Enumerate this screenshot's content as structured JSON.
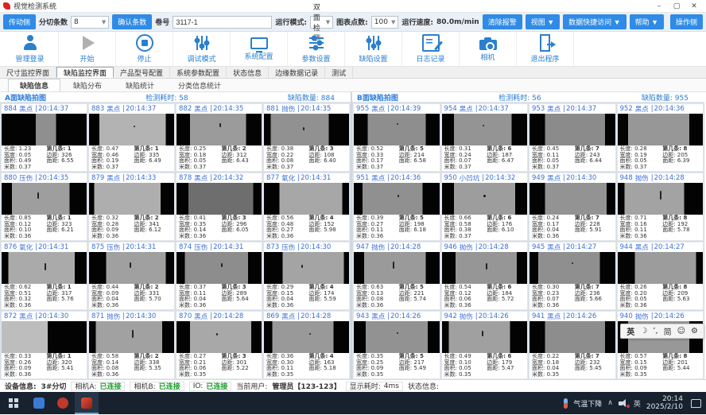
{
  "window": {
    "title": "视觉检测系统",
    "minimize": "–",
    "maximize": "▢",
    "close": "✕"
  },
  "toolbar": {
    "left_side_button": "传动侧",
    "slit_count_label": "分切条数",
    "slit_count_value": "8",
    "confirm_button": "确认条数",
    "roll_label": "卷号",
    "roll_value": "3117-1",
    "run_mode_label": "运行模式:",
    "run_mode_value": "双面检测",
    "chart_points_label": "图表点数:",
    "chart_points_value": "100",
    "speed_label": "运行速度:",
    "speed_value": "80.0m/min",
    "clear_alarm_button": "清除报警",
    "view_menu": "视图 ▼",
    "data_access_menu": "数据快捷访问 ▼",
    "help_menu": "帮助 ▼",
    "right_side_button": "操作侧"
  },
  "actions": [
    {
      "label": "管理登录",
      "icon": "user"
    },
    {
      "label": "开始",
      "icon": "play"
    },
    {
      "label": "停止",
      "icon": "stop"
    },
    {
      "label": "调试模式",
      "icon": "tune"
    },
    {
      "label": "系统配置",
      "icon": "monitor"
    },
    {
      "label": "参数设置",
      "icon": "sliders-h"
    },
    {
      "label": "缺陷设置",
      "icon": "sliders-v"
    },
    {
      "label": "日志记录",
      "icon": "log"
    },
    {
      "label": "相机",
      "icon": "camera"
    },
    {
      "label": "退出程序",
      "icon": "exit"
    }
  ],
  "main_tabs": [
    {
      "label": "尺寸监控界面",
      "active": false
    },
    {
      "label": "缺陷监控界面",
      "active": true
    },
    {
      "label": "产品型号配置",
      "active": false
    },
    {
      "label": "系统参数配置",
      "active": false
    },
    {
      "label": "状态信息",
      "active": false
    },
    {
      "label": "边缘数据记录",
      "active": false
    },
    {
      "label": "测试",
      "active": false
    }
  ],
  "sub_tabs": [
    {
      "label": "缺陷信息",
      "active": true
    },
    {
      "label": "缺陷分布",
      "active": false
    },
    {
      "label": "缺陷统计",
      "active": false
    },
    {
      "label": "分类信息统计",
      "active": false
    }
  ],
  "cell_labels": {
    "length": "长度:",
    "width": "宽度:",
    "area": "面积:",
    "meters": "米数:",
    "strip": "第几条:",
    "margin": "边距:",
    "distance": "面距:"
  },
  "panels": [
    {
      "title": "A面缺陷拍图",
      "time_label": "检测耗时:",
      "time_value": "58",
      "count_label": "缺陷数量:",
      "count_value": "884",
      "cells": [
        {
          "id": "884",
          "type": "黑点",
          "time": "20:14:37",
          "length": "1.23",
          "width": "0.05",
          "area": "0.49",
          "meters": "0.37",
          "strip": "1",
          "margin": "326",
          "distance": "6.55",
          "img": [
            40,
            36,
            "#8f8f8f",
            null
          ]
        },
        {
          "id": "883",
          "type": "黑点",
          "time": "20:14:37",
          "length": "0.47",
          "width": "0.46",
          "area": "0.19",
          "meters": "0.37",
          "strip": "1",
          "margin": "335",
          "distance": "6.49",
          "img": [
            12,
            10,
            "#b3b3b3",
            [
              52,
              38,
              2,
              2
            ]
          ]
        },
        {
          "id": "882",
          "type": "黑点",
          "time": "20:14:35",
          "length": "0.25",
          "width": "0.18",
          "area": "0.05",
          "meters": "0.37",
          "strip": "2",
          "margin": "312",
          "distance": "6.43",
          "img": [
            16,
            18,
            "#9b9b9b",
            [
              50,
              30,
              2,
              5
            ]
          ]
        },
        {
          "id": "881",
          "type": "抛伤",
          "time": "20:14:35",
          "length": "0.38",
          "width": "0.22",
          "area": "0.08",
          "meters": "0.37",
          "strip": "3",
          "margin": "108",
          "distance": "6.40",
          "img": [
            8,
            24,
            "#919191",
            [
              46,
              42,
              2,
              4
            ]
          ]
        },
        {
          "id": "880",
          "type": "压伤",
          "time": "20:14:35",
          "length": "0.85",
          "width": "0.12",
          "area": "0.10",
          "meters": "0.36",
          "strip": "1",
          "margin": "323",
          "distance": "6.21",
          "img": [
            12,
            20,
            "#9e9e9e",
            [
              42,
              30,
              2,
              8
            ]
          ]
        },
        {
          "id": "879",
          "type": "黑点",
          "time": "20:14:33",
          "length": "0.32",
          "width": "0.28",
          "area": "0.09",
          "meters": "0.36",
          "strip": "2",
          "margin": "341",
          "distance": "6.12",
          "img": [
            6,
            16,
            "#aeaeae",
            null
          ]
        },
        {
          "id": "878",
          "type": "黑点",
          "time": "20:14:32",
          "length": "0.41",
          "width": "0.35",
          "area": "0.14",
          "meters": "0.36",
          "strip": "3",
          "margin": "296",
          "distance": "6.05",
          "img": [
            14,
            10,
            "#6e6e6e",
            null
          ]
        },
        {
          "id": "877",
          "type": "氧化",
          "time": "20:14:31",
          "length": "0.56",
          "width": "0.48",
          "area": "0.27",
          "meters": "0.36",
          "strip": "4",
          "margin": "152",
          "distance": "5.98",
          "img": [
            18,
            8,
            "#a7a7a7",
            null
          ]
        },
        {
          "id": "876",
          "type": "氧化",
          "time": "20:14:31",
          "length": "0.62",
          "width": "0.51",
          "area": "0.32",
          "meters": "0.36",
          "strip": "1",
          "margin": "317",
          "distance": "5.76",
          "img": [
            8,
            14,
            "#aaaaaa",
            [
              50,
              35,
              2,
              9
            ]
          ]
        },
        {
          "id": "875",
          "type": "压伤",
          "time": "20:14:31",
          "length": "0.44",
          "width": "0.09",
          "area": "0.04",
          "meters": "0.36",
          "strip": "2",
          "margin": "331",
          "distance": "5.70",
          "img": [
            20,
            10,
            "#a0a0a0",
            [
              48,
              32,
              2,
              7
            ]
          ]
        },
        {
          "id": "874",
          "type": "压伤",
          "time": "20:14:31",
          "length": "0.37",
          "width": "0.11",
          "area": "0.04",
          "meters": "0.36",
          "strip": "3",
          "margin": "289",
          "distance": "5.64",
          "img": [
            10,
            16,
            "#8d8d8d",
            [
              52,
              34,
              2,
              5
            ]
          ]
        },
        {
          "id": "873",
          "type": "压伤",
          "time": "20:14:30",
          "length": "0.29",
          "width": "0.15",
          "area": "0.04",
          "meters": "0.36",
          "strip": "4",
          "margin": "174",
          "distance": "5.59",
          "img": [
            22,
            6,
            "#a4a4a4",
            [
              44,
              40,
              2,
              4
            ]
          ]
        },
        {
          "id": "872",
          "type": "黑点",
          "time": "20:14:30",
          "length": "0.33",
          "width": "0.26",
          "area": "0.09",
          "meters": "0.36",
          "strip": "1",
          "margin": "320",
          "distance": "5.41",
          "img": [
            0,
            46,
            "#bdbdbd",
            null
          ]
        },
        {
          "id": "871",
          "type": "抛伤",
          "time": "20:14:30",
          "length": "0.58",
          "width": "0.14",
          "area": "0.08",
          "meters": "0.36",
          "strip": "2",
          "margin": "338",
          "distance": "5.35",
          "img": [
            8,
            14,
            "#a1a1a1",
            [
              50,
              28,
              2,
              10
            ]
          ]
        },
        {
          "id": "870",
          "type": "黑点",
          "time": "20:14:28",
          "length": "0.27",
          "width": "0.21",
          "area": "0.06",
          "meters": "0.35",
          "strip": "3",
          "margin": "301",
          "distance": "5.22",
          "img": [
            16,
            12,
            "#a8a8a8",
            [
              47,
              38,
              2,
              3
            ]
          ]
        },
        {
          "id": "869",
          "type": "黑点",
          "time": "20:14:28",
          "length": "0.36",
          "width": "0.30",
          "area": "0.11",
          "meters": "0.35",
          "strip": "4",
          "margin": "163",
          "distance": "5.18",
          "img": [
            10,
            18,
            "#999999",
            [
              53,
              36,
              2,
              2
            ]
          ]
        }
      ]
    },
    {
      "title": "B面缺陷拍图",
      "time_label": "检测耗时:",
      "time_value": "56",
      "count_label": "缺陷数量:",
      "count_value": "955",
      "cells": [
        {
          "id": "955",
          "type": "黑点",
          "time": "20:14:39",
          "length": "0.52",
          "width": "0.33",
          "area": "0.17",
          "meters": "0.37",
          "strip": "5",
          "margin": "214",
          "distance": "6.58",
          "img": [
            16,
            16,
            "#8e8e8e",
            [
              50,
              30,
              2,
              2
            ]
          ]
        },
        {
          "id": "954",
          "type": "黑点",
          "time": "20:14:37",
          "length": "0.31",
          "width": "0.24",
          "area": "0.07",
          "meters": "0.37",
          "strip": "6",
          "margin": "187",
          "distance": "6.47",
          "img": [
            14,
            18,
            "#949494",
            [
              48,
              34,
              2,
              2
            ]
          ]
        },
        {
          "id": "953",
          "type": "黑点",
          "time": "20:14:37",
          "length": "0.45",
          "width": "0.11",
          "area": "0.05",
          "meters": "0.37",
          "strip": "7",
          "margin": "243",
          "distance": "6.44",
          "img": [
            18,
            12,
            "#8b8b8b",
            null
          ]
        },
        {
          "id": "952",
          "type": "黑点",
          "time": "20:14:36",
          "length": "0.28",
          "width": "0.19",
          "area": "0.05",
          "meters": "0.37",
          "strip": "8",
          "margin": "205",
          "distance": "6.39",
          "img": [
            12,
            16,
            "#979797",
            null
          ]
        },
        {
          "id": "951",
          "type": "黑点",
          "time": "20:14:36",
          "length": "0.39",
          "width": "0.27",
          "area": "0.11",
          "meters": "0.36",
          "strip": "5",
          "margin": "198",
          "distance": "6.18",
          "img": [
            10,
            20,
            "#909090",
            [
              51,
              36,
              2,
              3
            ]
          ]
        },
        {
          "id": "950",
          "type": "小凹坑",
          "time": "20:14:32",
          "length": "0.66",
          "width": "0.58",
          "area": "0.38",
          "meters": "0.37",
          "strip": "6",
          "margin": "176",
          "distance": "6.10",
          "img": [
            14,
            14,
            "#9d9d9d",
            [
              49,
              38,
              3,
              3
            ]
          ]
        },
        {
          "id": "949",
          "type": "黑点",
          "time": "20:14:30",
          "length": "0.24",
          "width": "0.17",
          "area": "0.04",
          "meters": "0.36",
          "strip": "7",
          "margin": "228",
          "distance": "5.91",
          "img": [
            18,
            10,
            "#939393",
            null
          ]
        },
        {
          "id": "948",
          "type": "抛伤",
          "time": "20:14:28",
          "length": "0.71",
          "width": "0.16",
          "area": "0.11",
          "meters": "0.36",
          "strip": "8",
          "margin": "192",
          "distance": "5.78",
          "img": [
            8,
            22,
            "#a3a3a3",
            [
              50,
              26,
              2,
              11
            ]
          ]
        },
        {
          "id": "947",
          "type": "抛伤",
          "time": "20:14:28",
          "length": "0.63",
          "width": "0.13",
          "area": "0.08",
          "meters": "0.36",
          "strip": "5",
          "margin": "221",
          "distance": "5.74",
          "img": [
            12,
            16,
            "#9a9a9a",
            [
              46,
              30,
              2,
              9
            ]
          ]
        },
        {
          "id": "946",
          "type": "抛伤",
          "time": "20:14:28",
          "length": "0.54",
          "width": "0.12",
          "area": "0.06",
          "meters": "0.36",
          "strip": "6",
          "margin": "184",
          "distance": "5.72",
          "img": [
            16,
            12,
            "#969696",
            [
              52,
              34,
              2,
              8
            ]
          ]
        },
        {
          "id": "945",
          "type": "黑点",
          "time": "20:14:27",
          "length": "0.30",
          "width": "0.23",
          "area": "0.07",
          "meters": "0.36",
          "strip": "7",
          "margin": "236",
          "distance": "5.66",
          "img": [
            10,
            18,
            "#8f8f8f",
            [
              49,
              32,
              2,
              2
            ]
          ]
        },
        {
          "id": "944",
          "type": "黑点",
          "time": "20:14:27",
          "length": "0.26",
          "width": "0.20",
          "area": "0.05",
          "meters": "0.36",
          "strip": "8",
          "margin": "209",
          "distance": "5.63",
          "img": [
            20,
            8,
            "#9c9c9c",
            null
          ]
        },
        {
          "id": "943",
          "type": "黑点",
          "time": "20:14:26",
          "length": "0.35",
          "width": "0.25",
          "area": "0.09",
          "meters": "0.35",
          "strip": "5",
          "margin": "217",
          "distance": "5.49",
          "img": [
            14,
            14,
            "#929292",
            [
              50,
              35,
              2,
              2
            ]
          ]
        },
        {
          "id": "942",
          "type": "抛伤",
          "time": "20:14:26",
          "length": "0.49",
          "width": "0.10",
          "area": "0.05",
          "meters": "0.35",
          "strip": "6",
          "margin": "179",
          "distance": "5.47",
          "img": [
            8,
            20,
            "#a0a0a0",
            [
              47,
              30,
              2,
              7
            ]
          ]
        },
        {
          "id": "941",
          "type": "黑点",
          "time": "20:14:26",
          "length": "0.22",
          "width": "0.18",
          "area": "0.04",
          "meters": "0.35",
          "strip": "7",
          "margin": "232",
          "distance": "5.45",
          "img": [
            18,
            12,
            "#8d8d8d",
            null
          ]
        },
        {
          "id": "940",
          "type": "抛伤",
          "time": "20:14:26",
          "length": "0.57",
          "width": "0.15",
          "area": "0.09",
          "meters": "0.35",
          "strip": "8",
          "margin": "201",
          "distance": "5.44",
          "img": [
            12,
            16,
            "#989898",
            [
              51,
              33,
              2,
              6
            ]
          ]
        }
      ]
    }
  ],
  "status_bar": {
    "device_label": "设备信息:",
    "device": "3#分切",
    "cameraA_label": "相机A:",
    "cameraA": "已连接",
    "cameraB_label": "相机B:",
    "cameraB": "已连接",
    "io_label": "IO:",
    "io": "已连接",
    "user_label": "当前用户:",
    "user": "管理员【123-123】",
    "display_label": "显示耗时:",
    "display": "4ms",
    "state_label": "状态信息:"
  },
  "ime_bar": {
    "lang": "英",
    "moon": "☽",
    "punct": "’,",
    "simp": "简",
    "emoji": "☺",
    "gear": "⚙"
  },
  "taskbar": {
    "weather": "气温下降",
    "tray_arrow": "∧",
    "lang": "英",
    "ime": "🖮",
    "time": "20:14",
    "date": "2025/2/10"
  }
}
